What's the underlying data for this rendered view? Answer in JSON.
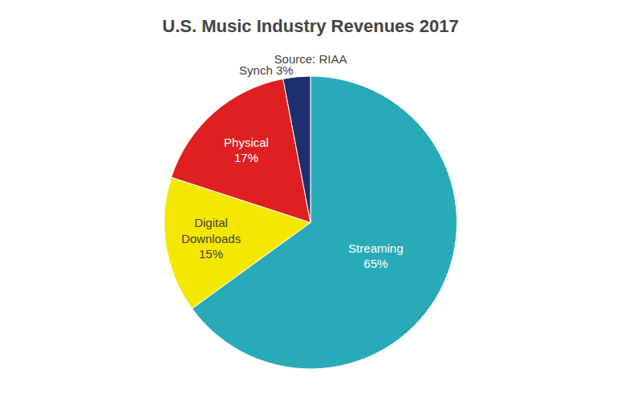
{
  "chart_data": {
    "type": "pie",
    "title": "U.S. Music Industry Revenues 2017",
    "subtitle": "Source: RIAA",
    "values": [
      65,
      15,
      17,
      3
    ],
    "value_labels": [
      "Streaming\n65%",
      "Digital\nDownloads\n15%",
      "Physical\n17%",
      "Synch 3%"
    ],
    "colors": [
      "#29aab8",
      "#f5e800",
      "#e02020",
      "#1c2f6e"
    ],
    "data_labels": true,
    "legend": false
  }
}
